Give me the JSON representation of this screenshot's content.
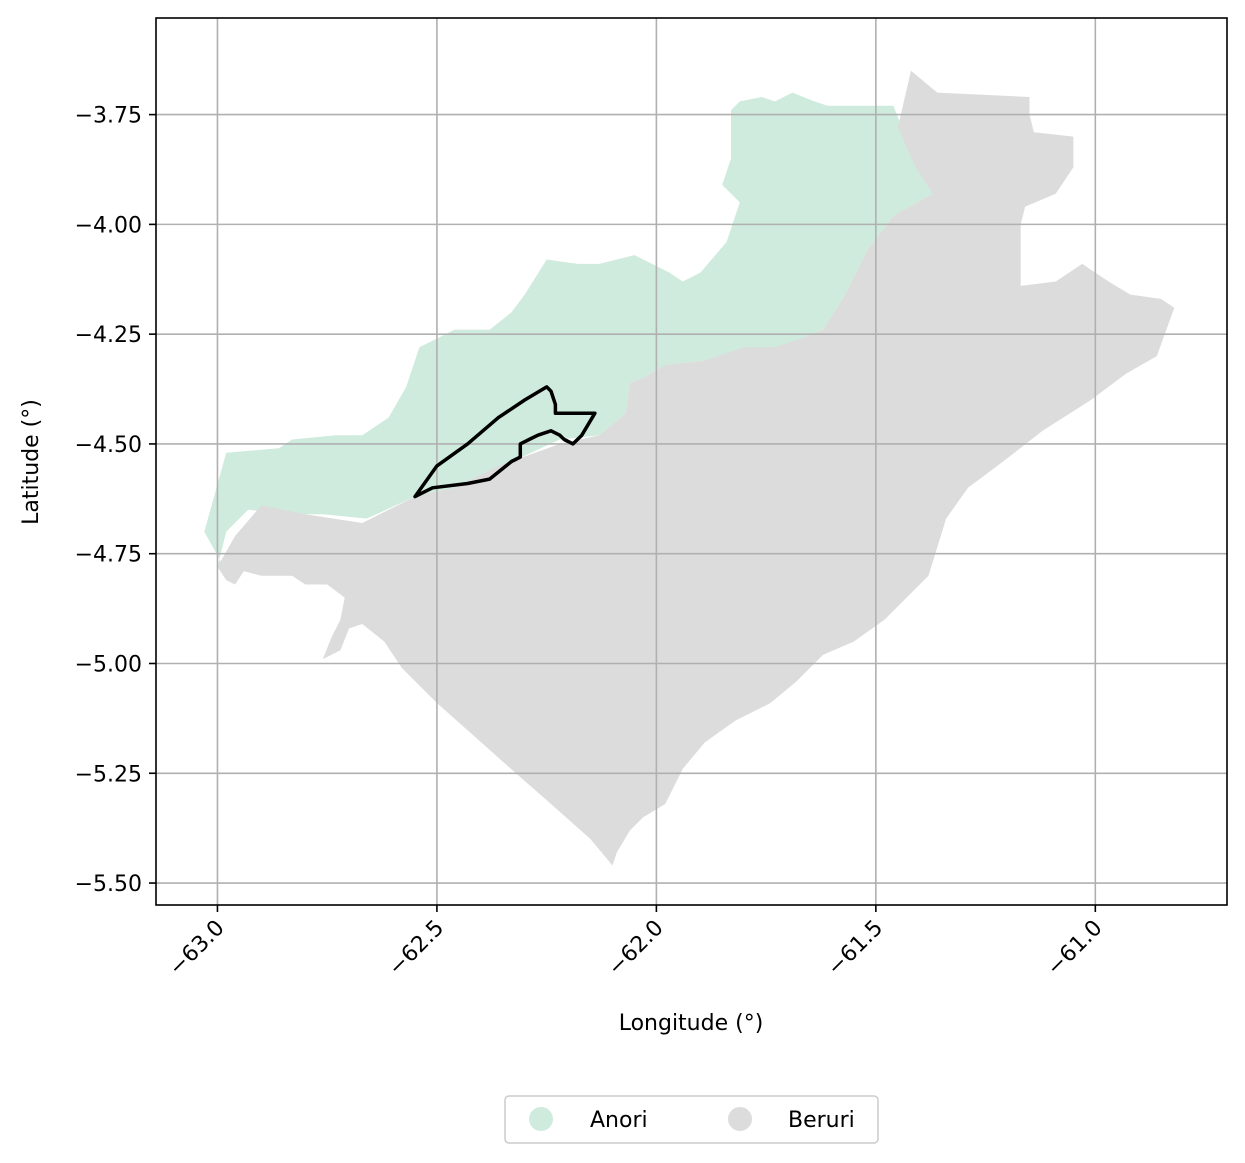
{
  "chart_data": {
    "type": "map",
    "xlabel": "Longitude (°)",
    "ylabel": "Latitude (°)",
    "xlim": [
      -63.14,
      -60.7
    ],
    "ylim": [
      -5.55,
      -3.53
    ],
    "xticks": [
      {
        "value": -63.0,
        "label": "−63.0"
      },
      {
        "value": -62.5,
        "label": "−62.5"
      },
      {
        "value": -62.0,
        "label": "−62.0"
      },
      {
        "value": -61.5,
        "label": "−61.5"
      },
      {
        "value": -61.0,
        "label": "−61.0"
      }
    ],
    "yticks": [
      {
        "value": -3.75,
        "label": "−3.75"
      },
      {
        "value": -4.0,
        "label": "−4.00"
      },
      {
        "value": -4.25,
        "label": "−4.25"
      },
      {
        "value": -4.5,
        "label": "−4.50"
      },
      {
        "value": -4.75,
        "label": "−4.75"
      },
      {
        "value": -5.0,
        "label": "−5.00"
      },
      {
        "value": -5.25,
        "label": "−5.25"
      },
      {
        "value": -5.5,
        "label": "−5.50"
      }
    ],
    "grid": true,
    "legend_position": "bottom-center",
    "regions": [
      {
        "name": "Anori",
        "color": "#cfebdd",
        "polygon": [
          [
            -63.03,
            -4.7
          ],
          [
            -62.98,
            -4.52
          ],
          [
            -62.86,
            -4.51
          ],
          [
            -62.83,
            -4.49
          ],
          [
            -62.73,
            -4.48
          ],
          [
            -62.67,
            -4.48
          ],
          [
            -62.61,
            -4.44
          ],
          [
            -62.57,
            -4.37
          ],
          [
            -62.54,
            -4.28
          ],
          [
            -62.46,
            -4.24
          ],
          [
            -62.38,
            -4.24
          ],
          [
            -62.33,
            -4.2
          ],
          [
            -62.3,
            -4.16
          ],
          [
            -62.25,
            -4.08
          ],
          [
            -62.18,
            -4.09
          ],
          [
            -62.13,
            -4.09
          ],
          [
            -62.05,
            -4.07
          ],
          [
            -61.99,
            -4.1
          ],
          [
            -61.97,
            -4.11
          ],
          [
            -61.94,
            -4.13
          ],
          [
            -61.9,
            -4.11
          ],
          [
            -61.84,
            -4.04
          ],
          [
            -61.81,
            -3.95
          ],
          [
            -61.85,
            -3.91
          ],
          [
            -61.83,
            -3.85
          ],
          [
            -61.83,
            -3.74
          ],
          [
            -61.81,
            -3.72
          ],
          [
            -61.76,
            -3.71
          ],
          [
            -61.73,
            -3.72
          ],
          [
            -61.69,
            -3.7
          ],
          [
            -61.64,
            -3.72
          ],
          [
            -61.61,
            -3.73
          ],
          [
            -61.55,
            -3.73
          ],
          [
            -61.46,
            -3.73
          ],
          [
            -61.44,
            -3.78
          ],
          [
            -61.41,
            -3.87
          ],
          [
            -61.37,
            -3.92
          ],
          [
            -61.37,
            -3.93
          ],
          [
            -61.46,
            -3.98
          ],
          [
            -61.52,
            -4.06
          ],
          [
            -61.57,
            -4.16
          ],
          [
            -61.62,
            -4.24
          ],
          [
            -61.67,
            -4.26
          ],
          [
            -61.72,
            -4.28
          ],
          [
            -61.8,
            -4.29
          ],
          [
            -61.89,
            -4.31
          ],
          [
            -61.98,
            -4.32
          ],
          [
            -62.03,
            -4.35
          ],
          [
            -62.06,
            -4.36
          ],
          [
            -62.07,
            -4.43
          ],
          [
            -62.13,
            -4.48
          ],
          [
            -62.22,
            -4.49
          ],
          [
            -62.35,
            -4.55
          ],
          [
            -62.45,
            -4.6
          ],
          [
            -62.55,
            -4.62
          ],
          [
            -62.66,
            -4.67
          ],
          [
            -62.76,
            -4.66
          ],
          [
            -62.83,
            -4.66
          ],
          [
            -62.93,
            -4.65
          ],
          [
            -62.98,
            -4.7
          ],
          [
            -63.0,
            -4.78
          ],
          [
            -62.98,
            -4.79
          ]
        ]
      },
      {
        "name": "Beruri",
        "color": "#dcdcdc",
        "polygon": [
          [
            -63.0,
            -4.78
          ],
          [
            -62.96,
            -4.71
          ],
          [
            -62.9,
            -4.64
          ],
          [
            -62.8,
            -4.66
          ],
          [
            -62.67,
            -4.68
          ],
          [
            -62.55,
            -4.62
          ],
          [
            -62.46,
            -4.6
          ],
          [
            -62.36,
            -4.55
          ],
          [
            -62.22,
            -4.5
          ],
          [
            -62.13,
            -4.48
          ],
          [
            -62.07,
            -4.43
          ],
          [
            -62.06,
            -4.36
          ],
          [
            -62.03,
            -4.35
          ],
          [
            -61.98,
            -4.32
          ],
          [
            -61.89,
            -4.31
          ],
          [
            -61.8,
            -4.28
          ],
          [
            -61.73,
            -4.28
          ],
          [
            -61.67,
            -4.26
          ],
          [
            -61.62,
            -4.24
          ],
          [
            -61.57,
            -4.16
          ],
          [
            -61.52,
            -4.06
          ],
          [
            -61.46,
            -3.98
          ],
          [
            -61.37,
            -3.93
          ],
          [
            -61.41,
            -3.87
          ],
          [
            -61.45,
            -3.78
          ],
          [
            -61.42,
            -3.65
          ],
          [
            -61.36,
            -3.7
          ],
          [
            -61.15,
            -3.71
          ],
          [
            -61.15,
            -3.75
          ],
          [
            -61.14,
            -3.79
          ],
          [
            -61.05,
            -3.8
          ],
          [
            -61.05,
            -3.87
          ],
          [
            -61.09,
            -3.93
          ],
          [
            -61.16,
            -3.96
          ],
          [
            -61.17,
            -4.0
          ],
          [
            -61.17,
            -4.14
          ],
          [
            -61.09,
            -4.13
          ],
          [
            -61.03,
            -4.09
          ],
          [
            -60.97,
            -4.13
          ],
          [
            -60.92,
            -4.16
          ],
          [
            -60.85,
            -4.17
          ],
          [
            -60.82,
            -4.19
          ],
          [
            -60.86,
            -4.3
          ],
          [
            -60.93,
            -4.34
          ],
          [
            -61.01,
            -4.4
          ],
          [
            -61.12,
            -4.47
          ],
          [
            -61.21,
            -4.54
          ],
          [
            -61.29,
            -4.6
          ],
          [
            -61.34,
            -4.67
          ],
          [
            -61.38,
            -4.8
          ],
          [
            -61.43,
            -4.85
          ],
          [
            -61.48,
            -4.9
          ],
          [
            -61.55,
            -4.95
          ],
          [
            -61.62,
            -4.98
          ],
          [
            -61.68,
            -5.04
          ],
          [
            -61.74,
            -5.09
          ],
          [
            -61.82,
            -5.13
          ],
          [
            -61.89,
            -5.18
          ],
          [
            -61.94,
            -5.24
          ],
          [
            -61.98,
            -5.32
          ],
          [
            -62.03,
            -5.35
          ],
          [
            -62.06,
            -5.38
          ],
          [
            -62.09,
            -5.43
          ],
          [
            -62.1,
            -5.46
          ],
          [
            -62.15,
            -5.4
          ],
          [
            -62.24,
            -5.32
          ],
          [
            -62.32,
            -5.25
          ],
          [
            -62.41,
            -5.17
          ],
          [
            -62.5,
            -5.09
          ],
          [
            -62.58,
            -5.01
          ],
          [
            -62.62,
            -4.95
          ],
          [
            -62.67,
            -4.91
          ],
          [
            -62.7,
            -4.92
          ],
          [
            -62.72,
            -4.97
          ],
          [
            -62.76,
            -4.99
          ],
          [
            -62.74,
            -4.94
          ],
          [
            -62.72,
            -4.9
          ],
          [
            -62.71,
            -4.85
          ],
          [
            -62.75,
            -4.82
          ],
          [
            -62.8,
            -4.82
          ],
          [
            -62.83,
            -4.8
          ],
          [
            -62.9,
            -4.8
          ],
          [
            -62.94,
            -4.79
          ],
          [
            -62.96,
            -4.82
          ],
          [
            -62.98,
            -4.81
          ]
        ]
      }
    ],
    "outline": {
      "stroke": "#000000",
      "polygon": [
        [
          -62.55,
          -4.62
        ],
        [
          -62.5,
          -4.55
        ],
        [
          -62.43,
          -4.5
        ],
        [
          -62.36,
          -4.44
        ],
        [
          -62.3,
          -4.4
        ],
        [
          -62.25,
          -4.37
        ],
        [
          -62.24,
          -4.38
        ],
        [
          -62.23,
          -4.41
        ],
        [
          -62.23,
          -4.43
        ],
        [
          -62.14,
          -4.43
        ],
        [
          -62.17,
          -4.48
        ],
        [
          -62.19,
          -4.5
        ],
        [
          -62.21,
          -4.49
        ],
        [
          -62.22,
          -4.48
        ],
        [
          -62.24,
          -4.47
        ],
        [
          -62.27,
          -4.48
        ],
        [
          -62.29,
          -4.49
        ],
        [
          -62.31,
          -4.5
        ],
        [
          -62.31,
          -4.53
        ],
        [
          -62.33,
          -4.54
        ],
        [
          -62.38,
          -4.58
        ],
        [
          -62.43,
          -4.59
        ],
        [
          -62.51,
          -4.6
        ]
      ]
    }
  }
}
